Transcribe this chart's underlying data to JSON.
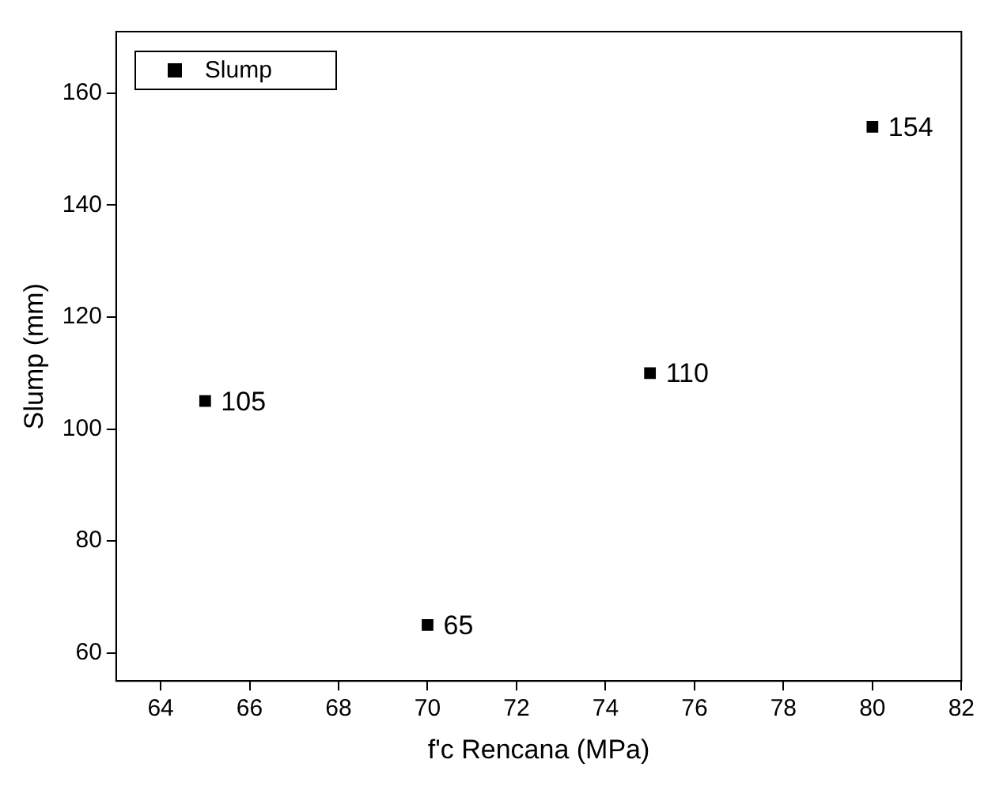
{
  "chart_data": {
    "type": "scatter",
    "xlabel": "f'c Rencana (MPa)",
    "ylabel": "Slump (mm)",
    "x": [
      65,
      70,
      75,
      80
    ],
    "series": [
      {
        "name": "Slump",
        "color": "#000000",
        "values": [
          105,
          65,
          110,
          154
        ]
      }
    ],
    "xlim": [
      63,
      82
    ],
    "xticks": [
      64,
      66,
      68,
      70,
      72,
      74,
      76,
      78,
      80,
      82
    ],
    "ylim": [
      55,
      171
    ],
    "yticks": [
      60,
      80,
      100,
      120,
      140,
      160
    ],
    "marker": "square",
    "data_labels": true,
    "legend": "top left",
    "grid": false
  }
}
